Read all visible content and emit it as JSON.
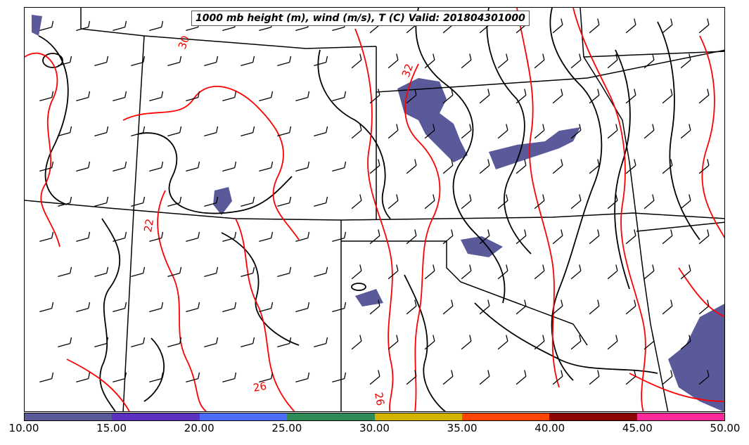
{
  "title": "1000 mb height (m), wind (m/s), T (C) Valid: 201804301000",
  "colorbar": {
    "ticks": [
      "10.00",
      "15.00",
      "20.00",
      "25.00",
      "30.00",
      "35.00",
      "40.00",
      "45.00",
      "50.00"
    ],
    "colors": [
      "#5a5a9a",
      "#5b2fc0",
      "#4c6cff",
      "#2e8b57",
      "#d4b300",
      "#ff4500",
      "#8b0000",
      "#ff2a99"
    ]
  },
  "contour_labels": [
    "30",
    "32",
    "22",
    "26",
    "26"
  ],
  "colors": {
    "height_contour": "#000000",
    "temp_contour": "#ff0000",
    "wind_shade": "#5a5a9a",
    "borders": "#000000"
  },
  "wind_barb_icon": "wind-barb-icon"
}
